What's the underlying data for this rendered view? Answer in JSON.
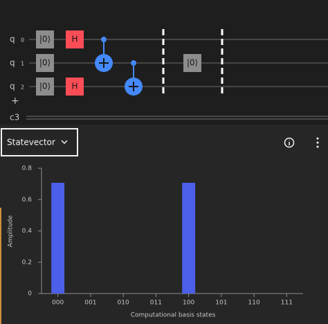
{
  "circuit": {
    "qubits": [
      {
        "name": "q",
        "index": "0"
      },
      {
        "name": "q",
        "index": "1"
      },
      {
        "name": "q",
        "index": "2"
      }
    ],
    "add_label": "+",
    "classical_register": "c3",
    "gates": [
      {
        "label": "|0⟩"
      },
      {
        "label": "|0⟩"
      },
      {
        "label": "|0⟩"
      },
      {
        "label": "H"
      },
      {
        "label": "H"
      },
      {
        "label": "|0⟩"
      }
    ]
  },
  "toolbar": {
    "view_selector": "Statevector"
  },
  "chart_data": {
    "type": "bar",
    "xlabel": "Computational basis states",
    "ylabel": "Amplitude",
    "categories": [
      "000",
      "001",
      "010",
      "011",
      "100",
      "101",
      "110",
      "111"
    ],
    "values": [
      0.707,
      0,
      0,
      0,
      0.707,
      0,
      0,
      0
    ],
    "color": "#4c5fe8",
    "ylim": [
      0,
      0.8
    ],
    "yticks": [
      0,
      0.2,
      0.4,
      0.6,
      0.8
    ],
    "grid": false
  }
}
